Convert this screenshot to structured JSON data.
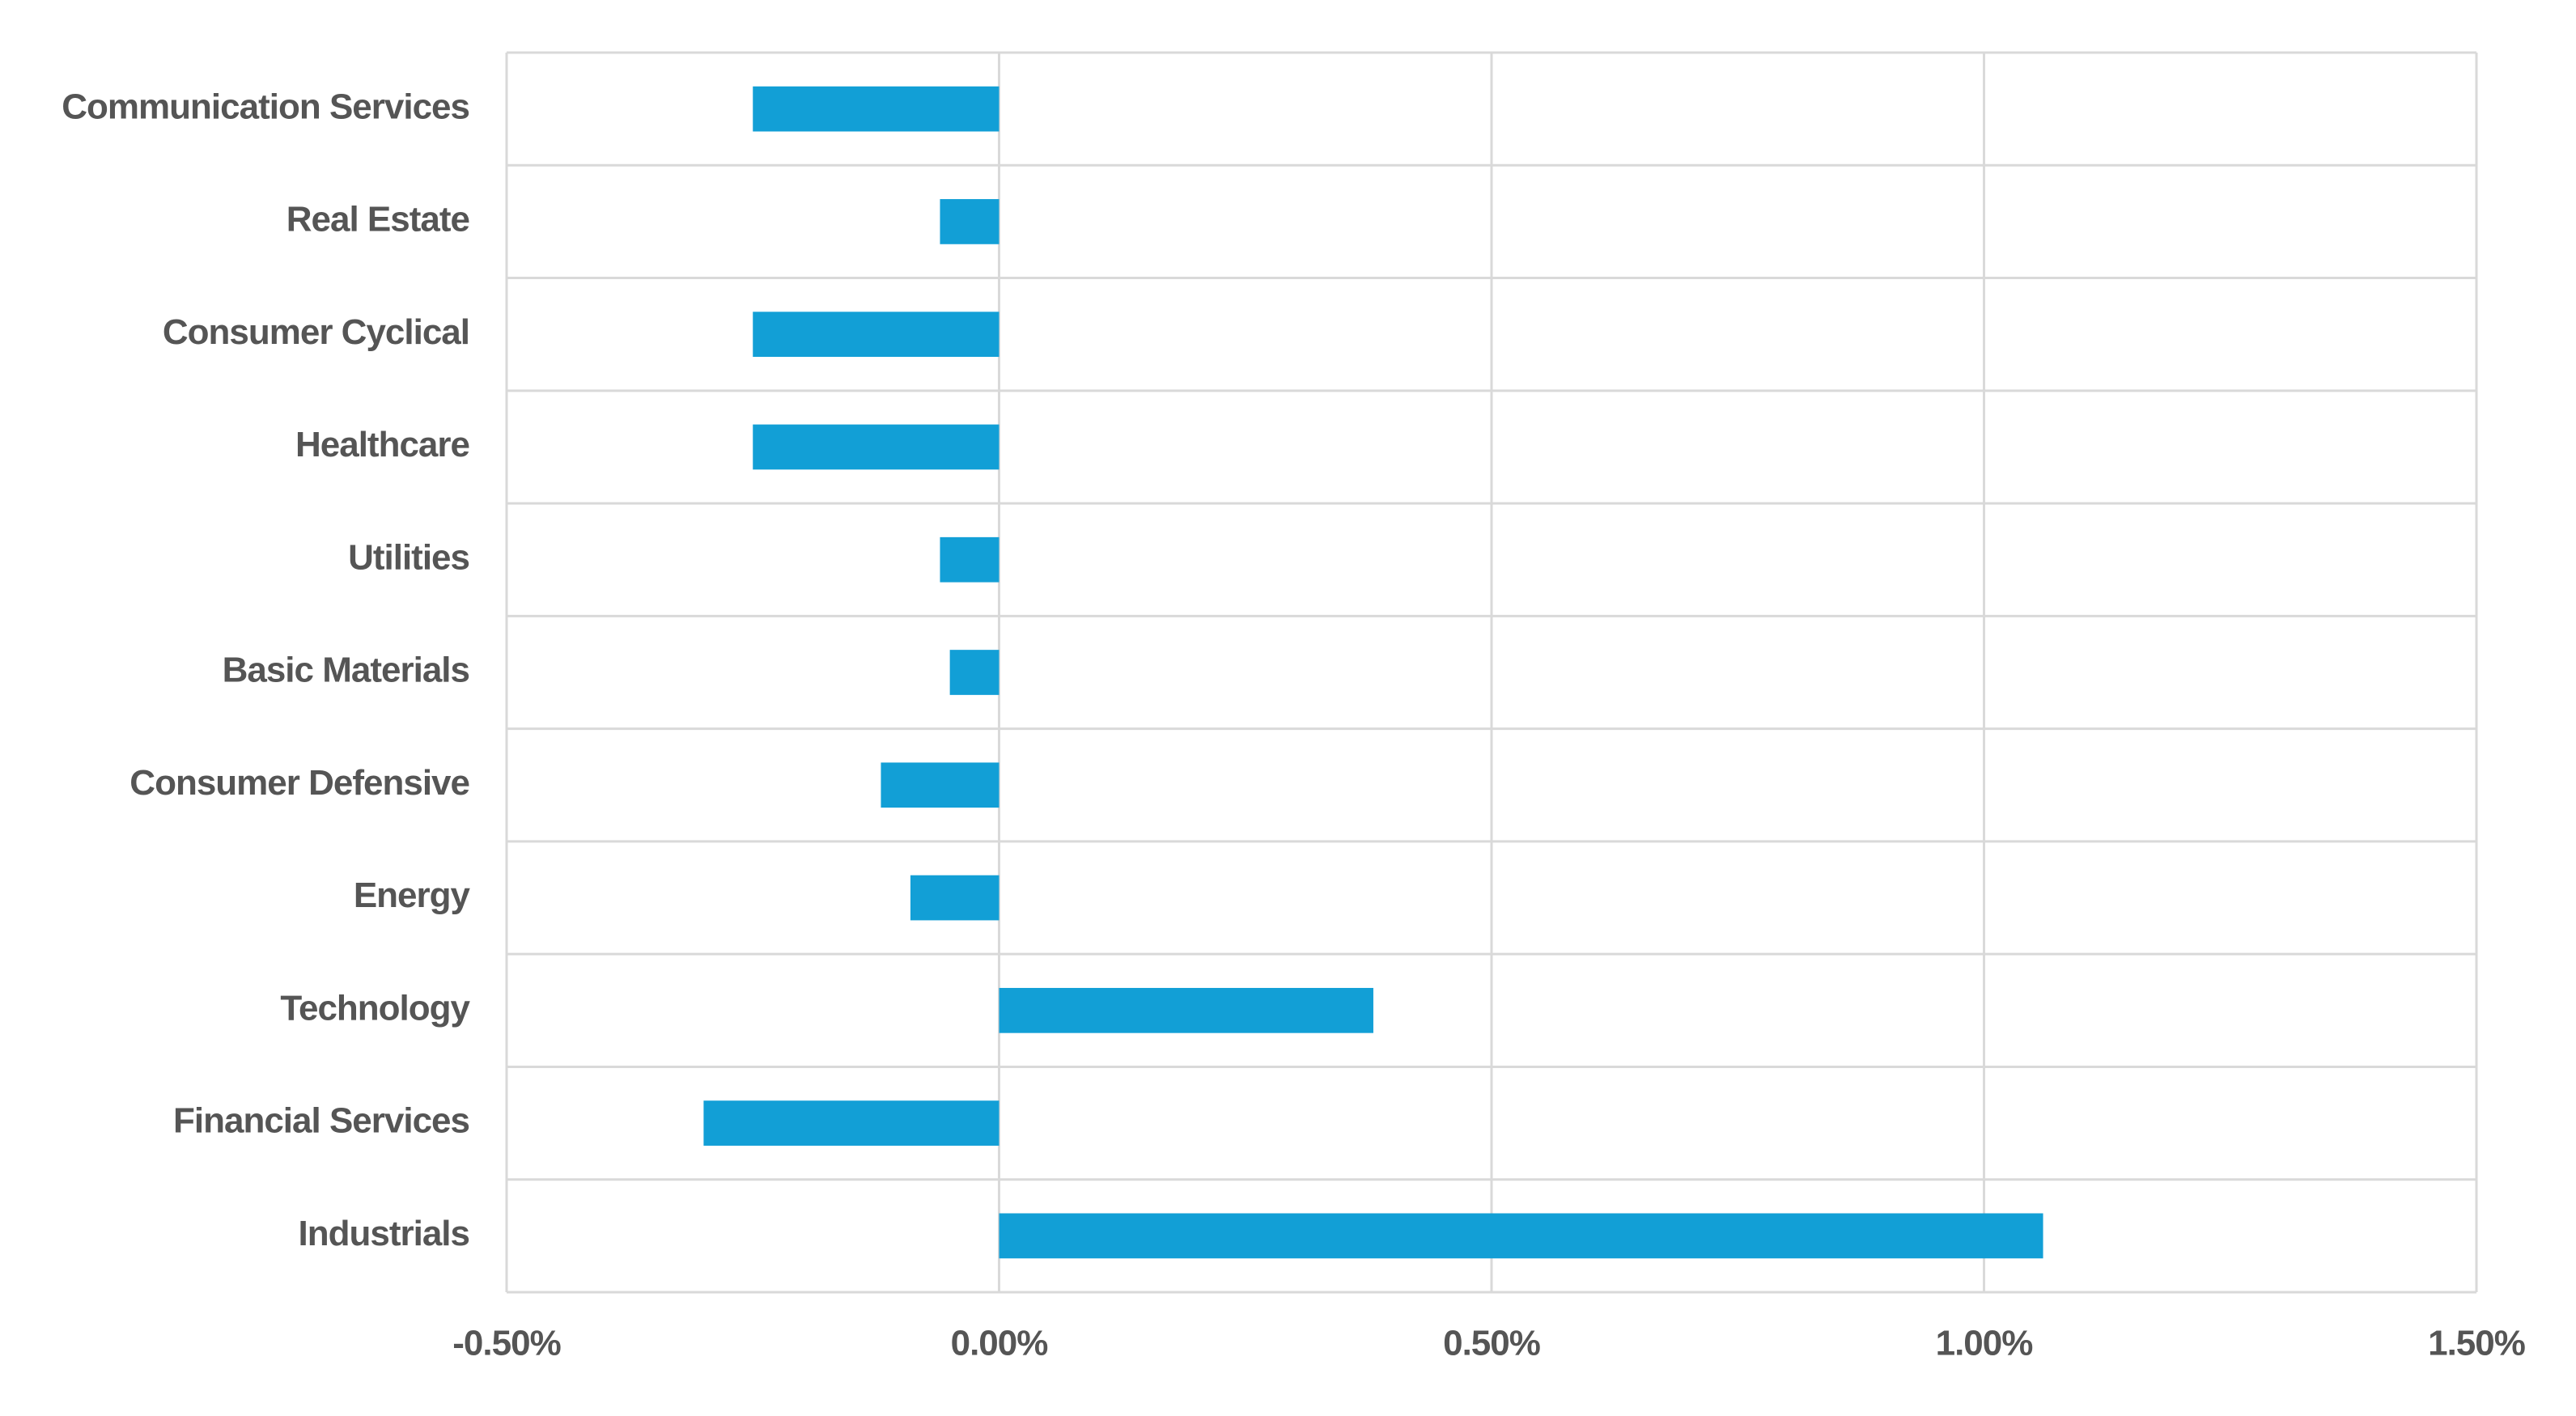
{
  "chart_data": {
    "type": "hbar",
    "categories": [
      "Communication Services",
      "Real Estate",
      "Consumer Cyclical",
      "Healthcare",
      "Utilities",
      "Basic Materials",
      "Consumer Defensive",
      "Energy",
      "Technology",
      "Financial Services",
      "Industrials"
    ],
    "values": [
      -0.25,
      -0.06,
      -0.25,
      -0.25,
      -0.06,
      -0.05,
      -0.12,
      -0.09,
      0.38,
      -0.3,
      1.06
    ],
    "color": "#129fd6",
    "xlim": [
      -0.5,
      1.5
    ],
    "xticks": [
      {
        "value": -0.5,
        "label": "-0.50%"
      },
      {
        "value": 0,
        "label": "0.00%"
      },
      {
        "value": 0.5,
        "label": "0.50%"
      },
      {
        "value": 1.0,
        "label": "1.00%"
      },
      {
        "value": 1.5,
        "label": "1.50%"
      }
    ],
    "grid": true
  }
}
